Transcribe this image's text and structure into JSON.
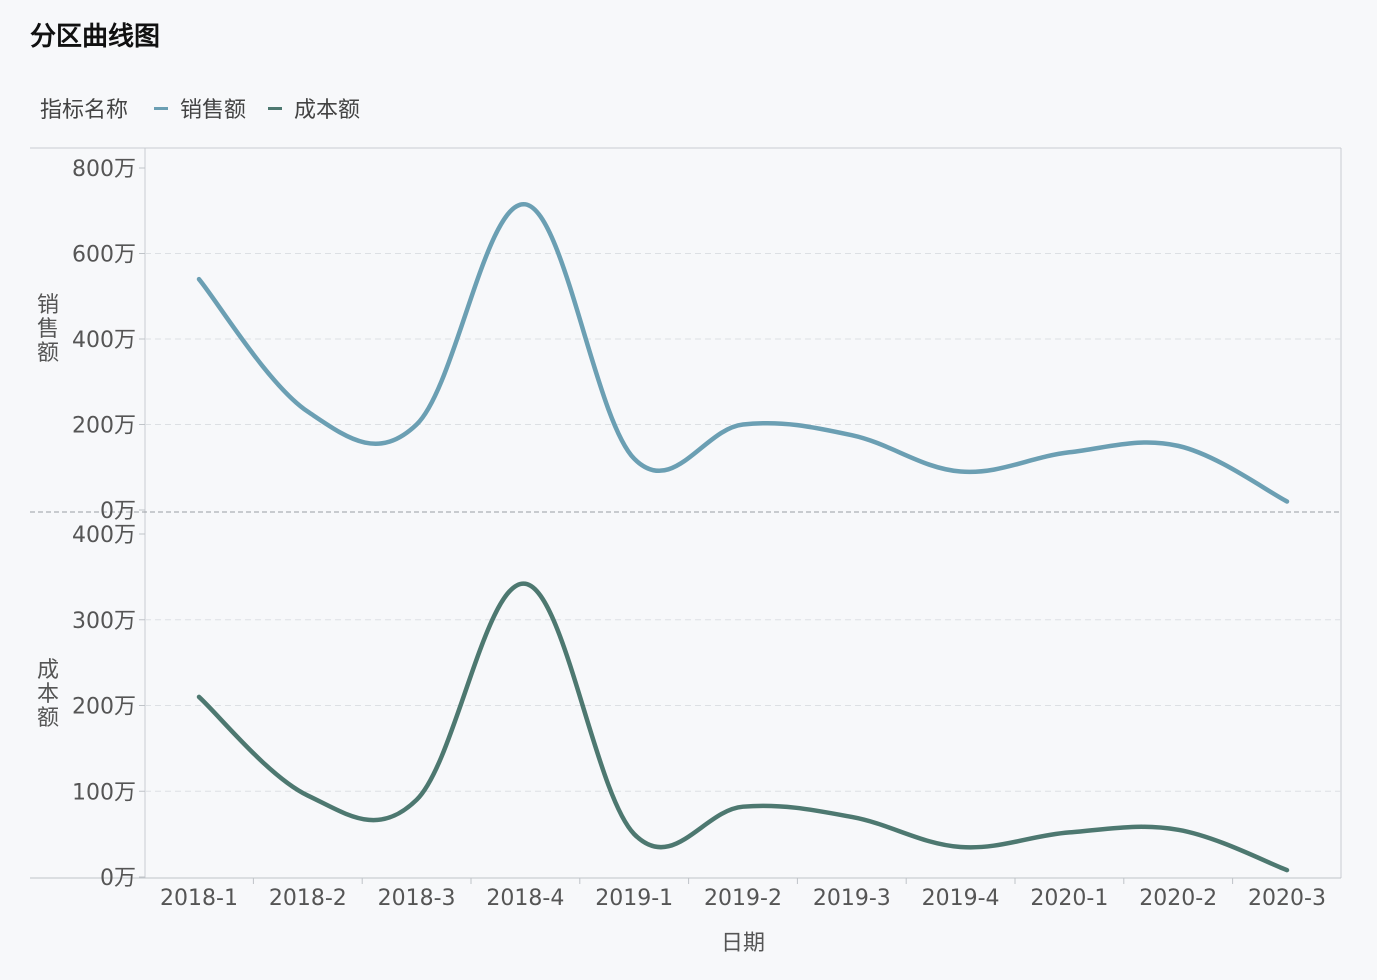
{
  "title": "分区曲线图",
  "legend": {
    "label": "指标名称",
    "items": [
      {
        "name": "销售额",
        "color": "#6b9fb3"
      },
      {
        "name": "成本额",
        "color": "#4d7870"
      }
    ]
  },
  "chart_data": {
    "type": "line",
    "title": "分区曲线图",
    "xlabel": "日期",
    "categories": [
      "2018-1",
      "2018-2",
      "2018-3",
      "2018-4",
      "2019-1",
      "2019-2",
      "2019-3",
      "2019-4",
      "2020-1",
      "2020-2",
      "2020-3"
    ],
    "legend_position": "top-left",
    "grid": true,
    "panels": [
      {
        "ylabel": "销售额",
        "unit": "万",
        "ylim": [
          0,
          800
        ],
        "yticks": [
          0,
          200,
          400,
          600,
          800
        ],
        "ytick_labels": [
          "0万",
          "200万",
          "400万",
          "600万",
          "800万"
        ],
        "series": [
          {
            "name": "销售额",
            "color": "#6b9fb3",
            "values": [
              540,
              230,
              200,
              715,
              120,
              200,
              175,
              90,
              135,
              150,
              20
            ]
          }
        ]
      },
      {
        "ylabel": "成本额",
        "unit": "万",
        "ylim": [
          0,
          400
        ],
        "yticks": [
          0,
          100,
          200,
          300,
          400
        ],
        "ytick_labels": [
          "0万",
          "100万",
          "200万",
          "300万",
          "400万"
        ],
        "series": [
          {
            "name": "成本额",
            "color": "#4d7870",
            "values": [
              210,
              95,
              90,
              342,
              50,
              82,
              70,
              35,
              52,
              55,
              8
            ]
          }
        ]
      }
    ]
  }
}
